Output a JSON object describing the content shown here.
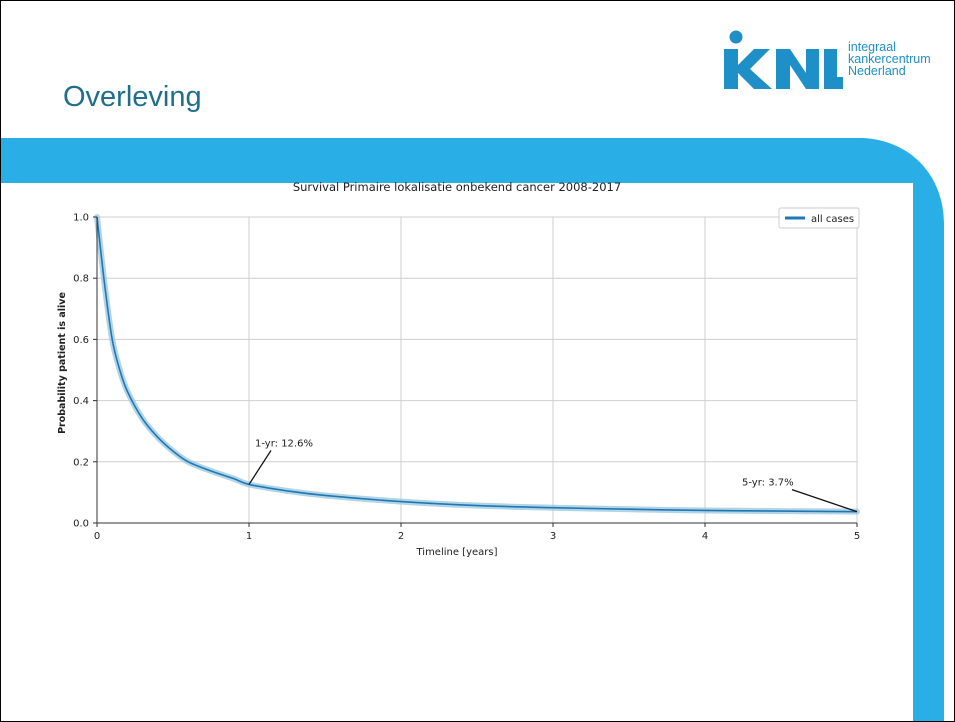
{
  "slide": {
    "title": "Overleving",
    "logo": {
      "mark": "KNL",
      "lines": [
        "integraal",
        "kankercentrum",
        "Nederland"
      ]
    },
    "colors": {
      "banner": "#29aee6",
      "title": "#1f6f8b",
      "series": "#1f77b4",
      "confidence_band": "#9ecae1"
    }
  },
  "chart_data": {
    "type": "line",
    "title": "Survival Primaire lokalisatie onbekend cancer 2008-2017",
    "xlabel": "Timeline [years]",
    "ylabel": "Probability patient is alive",
    "xlim": [
      0,
      5
    ],
    "ylim": [
      0,
      1
    ],
    "x_ticks": [
      "0",
      "1",
      "2",
      "3",
      "4",
      "5"
    ],
    "y_ticks": [
      "0.0",
      "0.2",
      "0.4",
      "0.6",
      "0.8",
      "1.0"
    ],
    "grid": true,
    "legend_position": "top-right",
    "series": [
      {
        "name": "all cases",
        "x": [
          0,
          0.05,
          0.1,
          0.15,
          0.2,
          0.3,
          0.4,
          0.5,
          0.6,
          0.75,
          0.9,
          1.0,
          1.25,
          1.5,
          2.0,
          2.5,
          3.0,
          3.5,
          4.0,
          4.5,
          5.0
        ],
        "y": [
          1.0,
          0.78,
          0.6,
          0.5,
          0.43,
          0.34,
          0.28,
          0.235,
          0.2,
          0.17,
          0.145,
          0.126,
          0.105,
          0.09,
          0.07,
          0.057,
          0.05,
          0.045,
          0.041,
          0.039,
          0.037
        ]
      }
    ],
    "annotations": [
      {
        "text": "1-yr: 12.6%",
        "x": 1,
        "y": 0.126
      },
      {
        "text": "5-yr: 3.7%",
        "x": 5,
        "y": 0.037
      }
    ]
  }
}
